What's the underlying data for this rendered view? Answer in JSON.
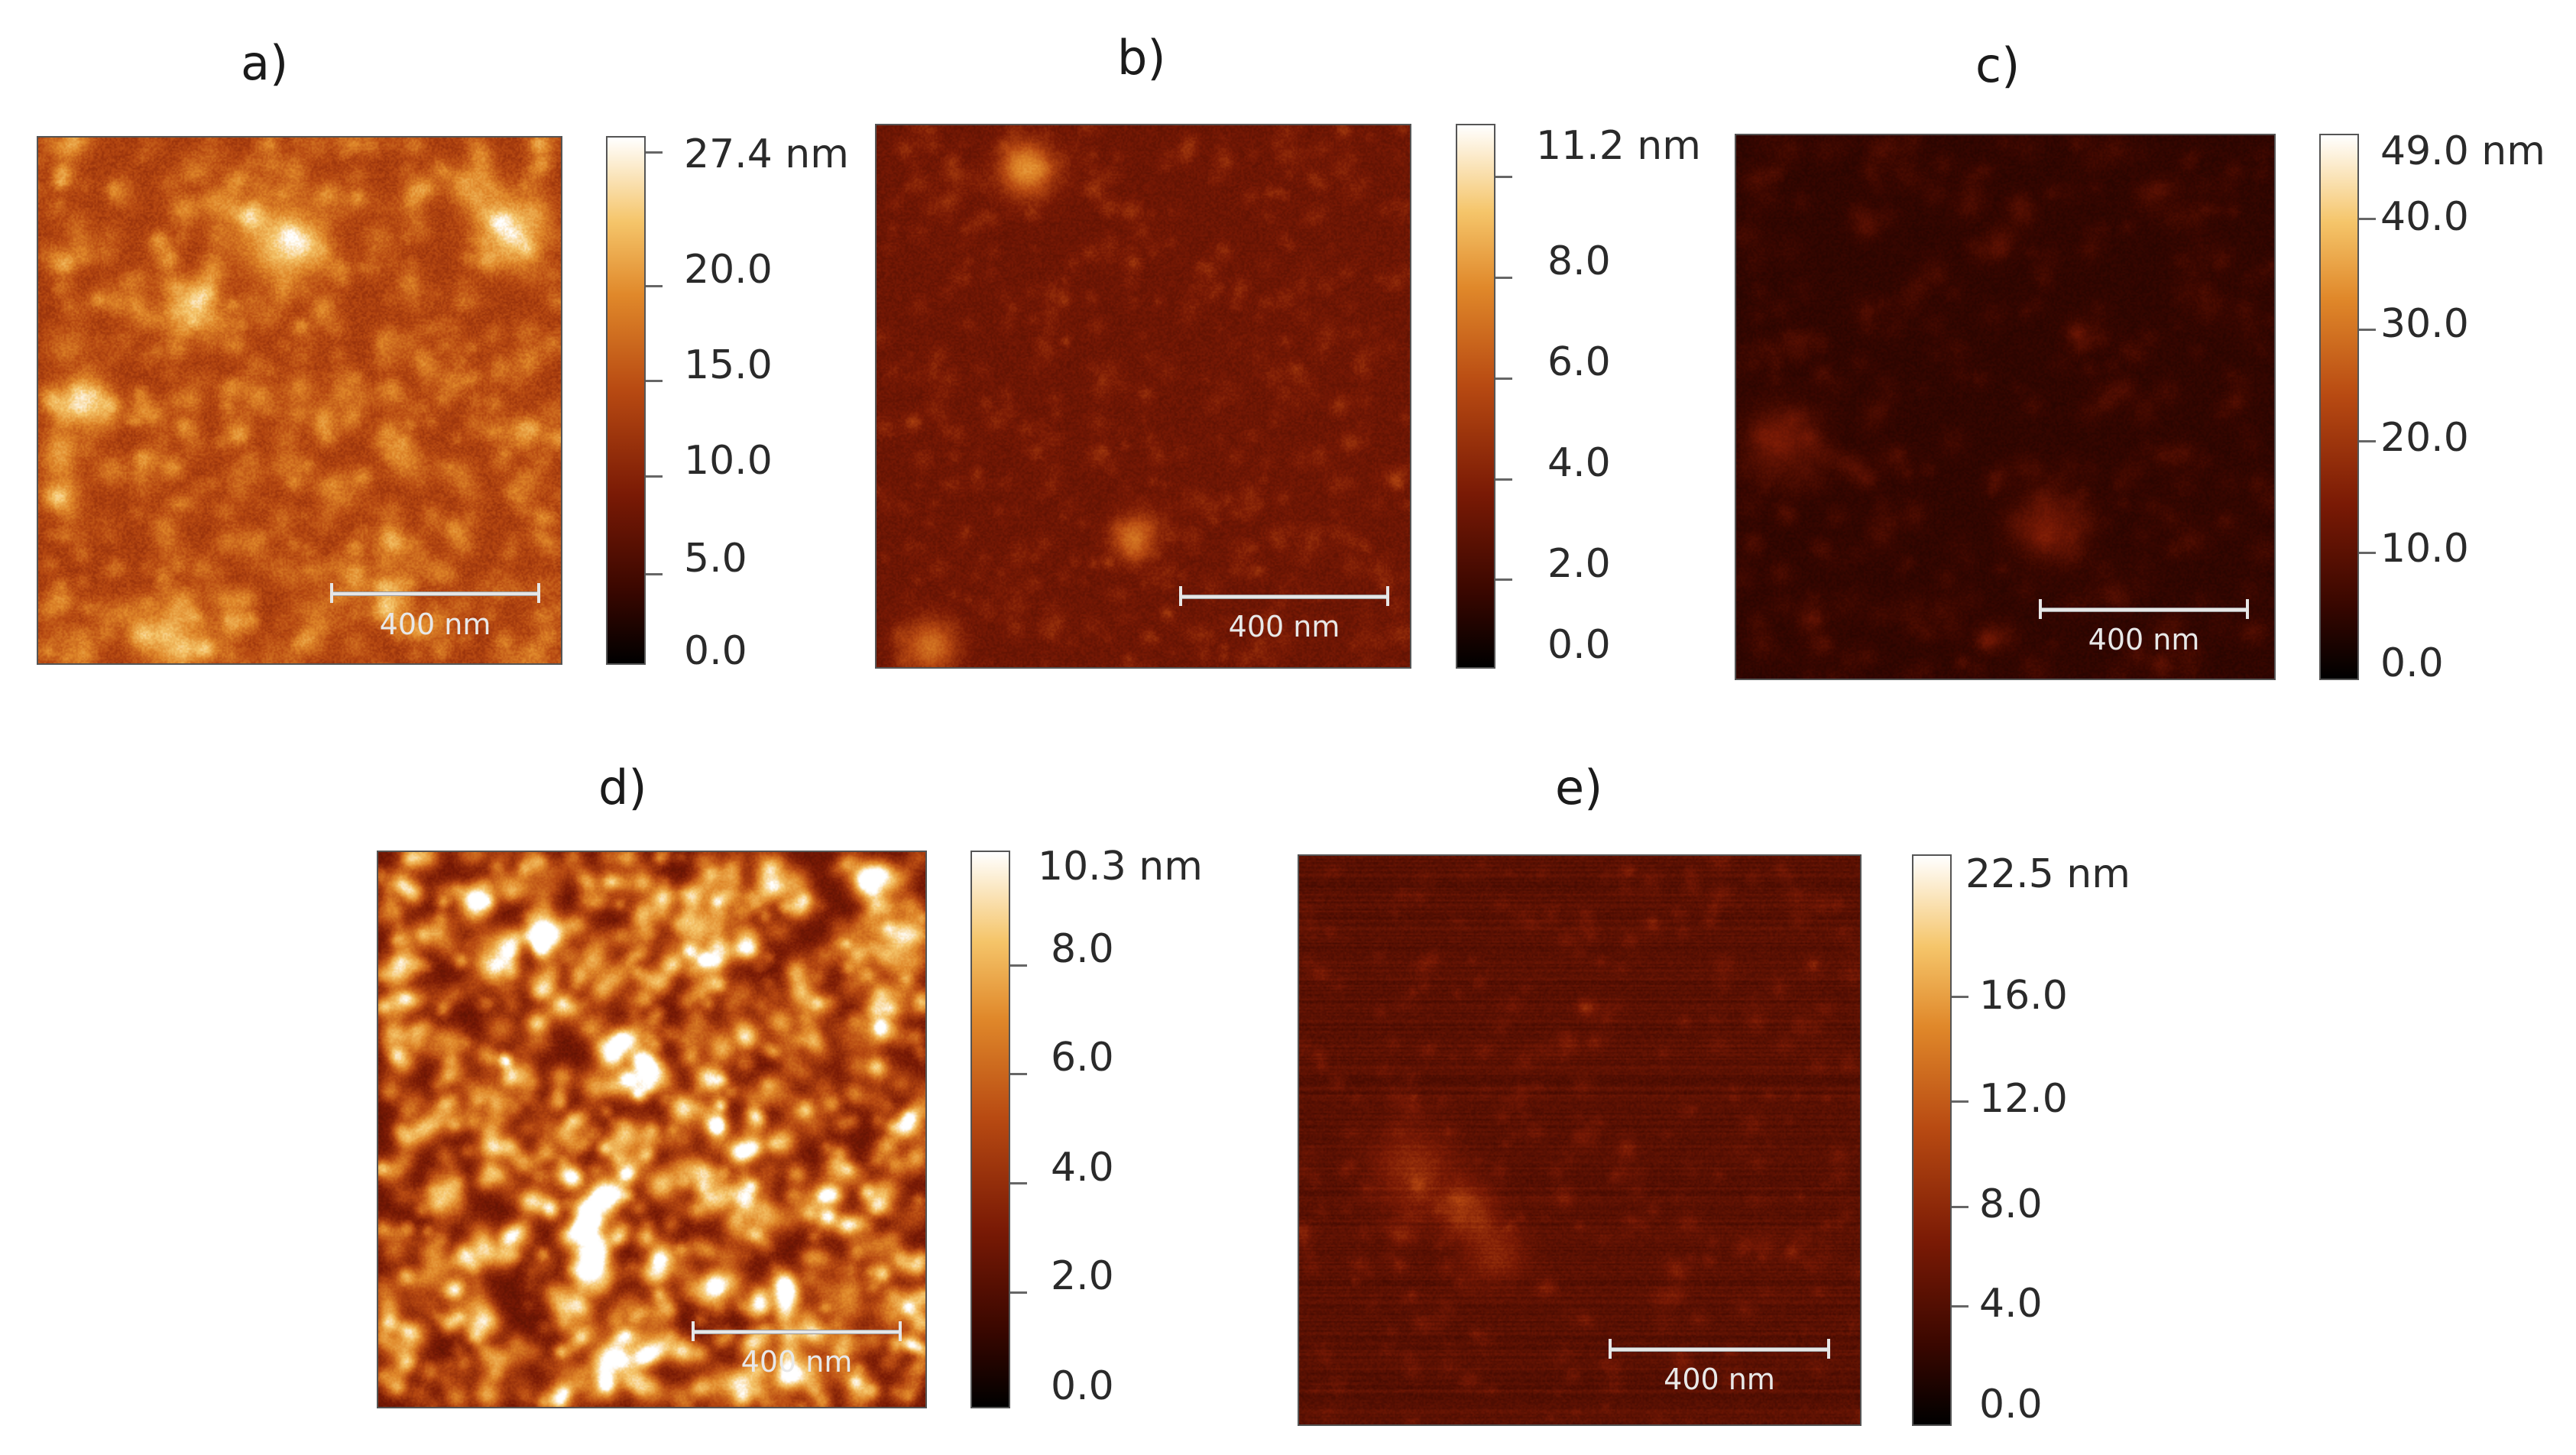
{
  "panels": [
    {
      "id": "a",
      "label": "a)",
      "scale_bar": "400 nm",
      "colorbar": [
        "27.4 nm",
        "20.0",
        "15.0",
        "10.0",
        "5.0",
        "0.0"
      ]
    },
    {
      "id": "b",
      "label": "b)",
      "scale_bar": "400 nm",
      "colorbar": [
        "11.2 nm",
        "8.0",
        "6.0",
        "4.0",
        "2.0",
        "0.0"
      ]
    },
    {
      "id": "c",
      "label": "c)",
      "scale_bar": "400 nm",
      "colorbar": [
        "49.0 nm",
        "40.0",
        "30.0",
        "20.0",
        "10.0",
        "0.0"
      ]
    },
    {
      "id": "d",
      "label": "d)",
      "scale_bar": "400 nm",
      "colorbar": [
        "10.3 nm",
        "8.0",
        "6.0",
        "4.0",
        "2.0",
        "0.0"
      ]
    },
    {
      "id": "e",
      "label": "e)",
      "scale_bar": "400 nm",
      "colorbar": [
        "22.5 nm",
        "16.0",
        "12.0",
        "8.0",
        "4.0",
        "0.0"
      ]
    }
  ],
  "colormap": [
    "#000000",
    "#3a0700",
    "#7a1a05",
    "#b84a12",
    "#e0882a",
    "#f5c56a",
    "#ffffff"
  ]
}
